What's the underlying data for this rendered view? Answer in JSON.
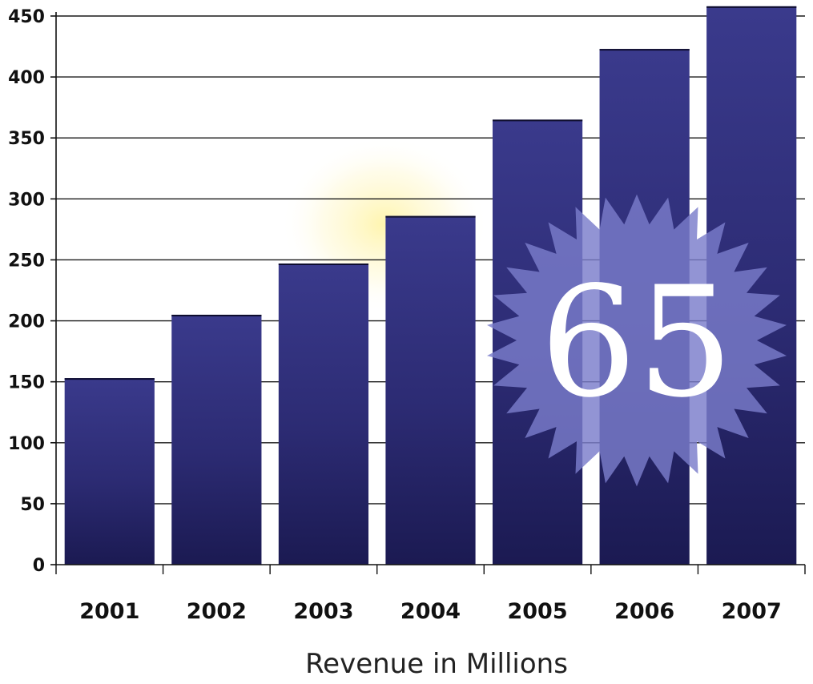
{
  "chart_data": {
    "type": "bar",
    "categories": [
      "2001",
      "2002",
      "2003",
      "2004",
      "2005",
      "2006",
      "2007"
    ],
    "values": [
      153,
      205,
      247,
      286,
      365,
      423,
      458
    ],
    "title": "",
    "xlabel": "Revenue in Millions",
    "ylabel": "",
    "ylim": [
      0,
      450
    ],
    "yticks": [
      0,
      50,
      100,
      150,
      200,
      250,
      300,
      350,
      400,
      450
    ],
    "grid": true,
    "legend": "none",
    "colors": {
      "bar_top": "#3a3a8c",
      "bar_bottom": "#1b1a52",
      "grid": "#1a1a1a",
      "glow": "#fff3a0",
      "badge": "#7a7ccb"
    }
  },
  "badge": {
    "text": "65",
    "icon": "starburst-icon"
  }
}
